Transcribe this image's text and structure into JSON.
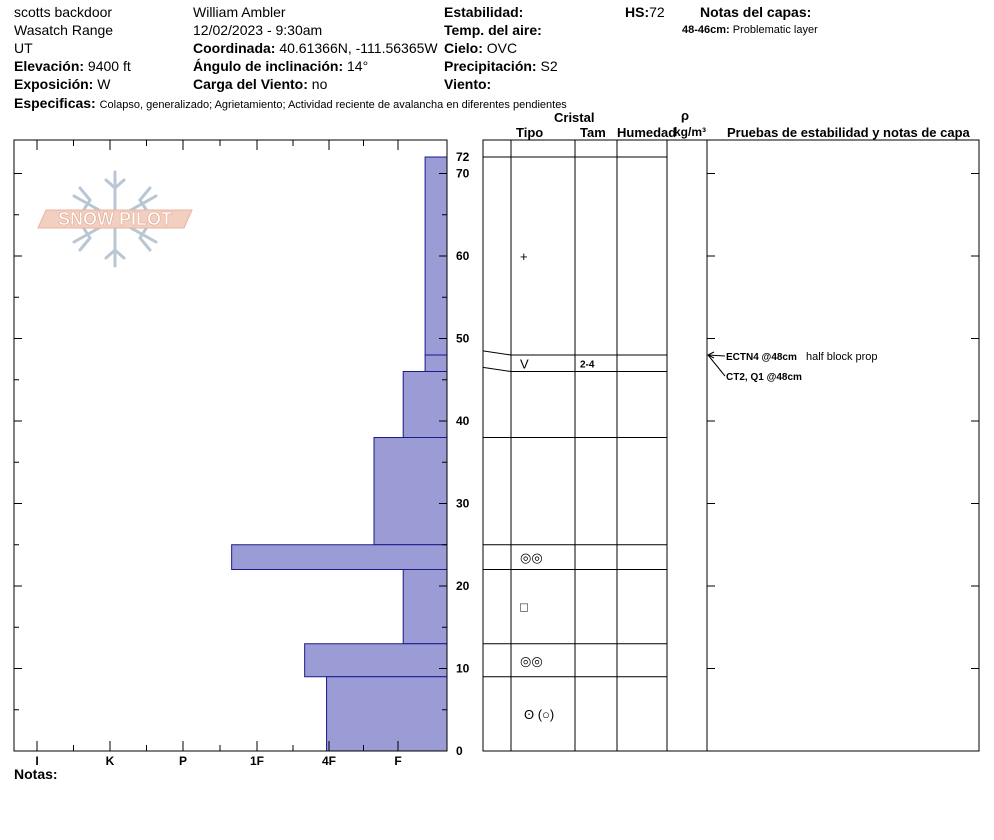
{
  "header": {
    "location": "scotts backdoor",
    "range": "Wasatch Range",
    "state": "UT",
    "elevation_label": "Elevación:",
    "elevation": "9400 ft",
    "exposure_label": "Exposición:",
    "exposure": "W",
    "observer": "William Ambler",
    "datetime": "12/02/2023 - 9:30am",
    "coord_label": "Coordinada:",
    "coord": "40.61366N, -111.56365W",
    "slope_label": "Ángulo de inclinación:",
    "slope": "14°",
    "wind_load_label": "Carga del Viento:",
    "wind_load": "no",
    "stability_label": "Estabilidad:",
    "air_temp_label": "Temp. del aire:",
    "sky_label": "Cielo:",
    "sky": "OVC",
    "precip_label": "Precipitación:",
    "precip": "S2",
    "wind_label": "Viento:",
    "hs_label": "HS:",
    "hs": "72",
    "layer_notes_label": "Notas del capas:",
    "layer_note_depth": "48-46cm:",
    "layer_note_text": "Problematic layer",
    "specifics_label": "Especificas:",
    "specifics": "Colapso, generalizado; Agrietamiento; Actividad reciente de avalancha en diferentes pendientes"
  },
  "columns": {
    "crystal": "Cristal",
    "type": "Tipo",
    "size": "Tam",
    "humidity": "Humedad",
    "rho": "ρ",
    "density_unit": "kg/m³",
    "tests": "Pruebas de estabilidad y notas de capa"
  },
  "logo_text": "SNOW PILOT",
  "notes_label": "Notas:",
  "tests": [
    {
      "label": "ECTN4 @48cm",
      "note": "half block prop",
      "depth_cm": 48
    },
    {
      "label": "CT2, Q1 @48cm",
      "note": "",
      "depth_cm": 48
    }
  ],
  "chart_data": {
    "type": "bar",
    "title": "",
    "xlabel": "",
    "ylabel": "",
    "hardness_scale": [
      "I",
      "K",
      "P",
      "1F",
      "4F",
      "F"
    ],
    "ylim": [
      0,
      72
    ],
    "y_ticks": [
      0,
      10,
      20,
      30,
      40,
      50,
      60,
      70,
      72
    ],
    "layers": [
      {
        "top": 72,
        "bottom": 48,
        "hardness": "F",
        "hardness_index": 0.3,
        "grain": "+",
        "size": ""
      },
      {
        "top": 48,
        "bottom": 46,
        "hardness": "F",
        "hardness_index": 0.3,
        "grain": "V",
        "size": "2-4"
      },
      {
        "top": 46,
        "bottom": 38,
        "hardness": "F",
        "hardness_index": 0.6,
        "grain": "",
        "size": ""
      },
      {
        "top": 38,
        "bottom": 25,
        "hardness": "4F",
        "hardness_index": 1.0,
        "grain": "",
        "size": ""
      },
      {
        "top": 25,
        "bottom": 22,
        "hardness": "1F",
        "hardness_index": 2.95,
        "grain": "◎◎",
        "size": ""
      },
      {
        "top": 22,
        "bottom": 13,
        "hardness": "F",
        "hardness_index": 0.6,
        "grain": "□",
        "size": ""
      },
      {
        "top": 13,
        "bottom": 9,
        "hardness": "4F",
        "hardness_index": 1.95,
        "grain": "◎◎",
        "size": ""
      },
      {
        "top": 9,
        "bottom": 0,
        "hardness": "4F",
        "hardness_index": 1.65,
        "grain": "ʘ (○)",
        "size": ""
      }
    ],
    "colors": {
      "bar_fill": "#9b9bd6",
      "bar_stroke": "#1a1a8c"
    }
  }
}
